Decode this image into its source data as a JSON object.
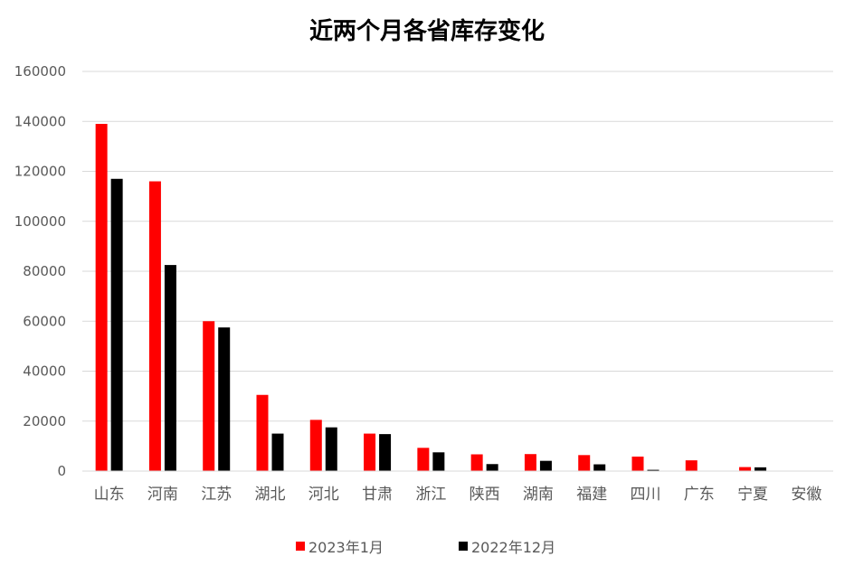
{
  "chart_data": {
    "type": "bar",
    "title": "近两个月各省库存变化",
    "categories": [
      "山东",
      "河南",
      "江苏",
      "湖北",
      "河北",
      "甘肃",
      "浙江",
      "陕西",
      "湖南",
      "福建",
      "四川",
      "广东",
      "宁夏",
      "安徽"
    ],
    "series": [
      {
        "name": "2023年1月",
        "color": "#ff0000",
        "values": [
          139000,
          116000,
          60000,
          30500,
          20500,
          15000,
          9300,
          6700,
          6800,
          6400,
          5800,
          4300,
          1600,
          0
        ]
      },
      {
        "name": "2022年12月",
        "color": "#000000",
        "values": [
          117000,
          82500,
          57500,
          15000,
          17500,
          14800,
          7500,
          2800,
          4100,
          2700,
          500,
          0,
          1500,
          0
        ]
      }
    ],
    "yticks": [
      "0",
      "20000",
      "40000",
      "60000",
      "80000",
      "100000",
      "120000",
      "140000",
      "160000"
    ],
    "ylim": [
      0,
      160000
    ],
    "grid": true,
    "legend_position": "bottom"
  }
}
